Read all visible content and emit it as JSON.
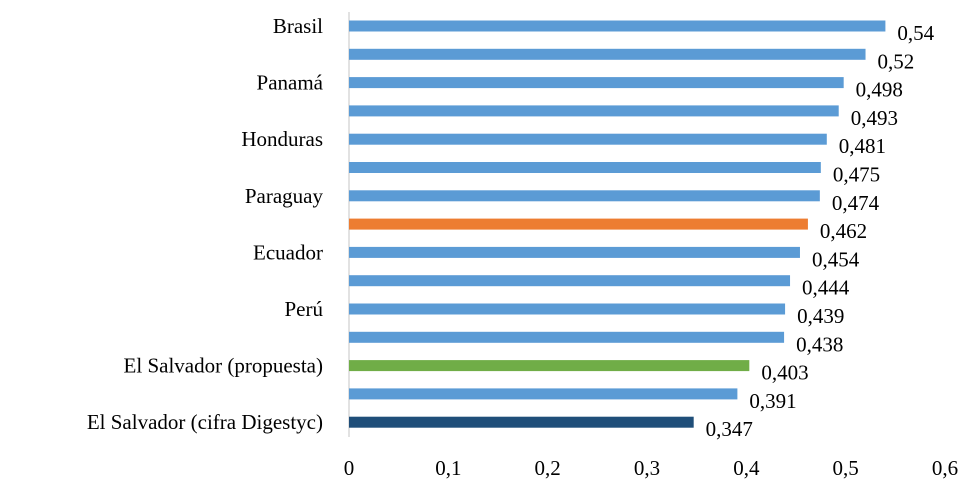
{
  "chart_data": {
    "type": "bar",
    "orientation": "horizontal",
    "title": "",
    "xlabel": "",
    "ylabel": "",
    "categories": [
      "Brasil",
      "",
      "Panamá",
      "",
      "Honduras",
      "",
      "Paraguay",
      "",
      "Ecuador",
      "",
      "Perú",
      "",
      "El Salvador (propuesta)",
      "",
      "El Salvador (cifra Digestyc)"
    ],
    "values": [
      0.54,
      0.52,
      0.498,
      0.493,
      0.481,
      0.475,
      0.474,
      0.462,
      0.454,
      0.444,
      0.439,
      0.438,
      0.403,
      0.391,
      0.347
    ],
    "value_labels": [
      "0,54",
      "0,52",
      "0,498",
      "0,493",
      "0,481",
      "0,475",
      "0,474",
      "0,462",
      "0,454",
      "0,444",
      "0,439",
      "0,438",
      "0,403",
      "0,391",
      "0,347"
    ],
    "bar_colors": [
      "#5B9BD5",
      "#5B9BD5",
      "#5B9BD5",
      "#5B9BD5",
      "#5B9BD5",
      "#5B9BD5",
      "#5B9BD5",
      "#ED7D31",
      "#5B9BD5",
      "#5B9BD5",
      "#5B9BD5",
      "#5B9BD5",
      "#70AD47",
      "#5B9BD5",
      "#1F4E79"
    ],
    "xlim": [
      0,
      0.6
    ],
    "x_ticks": [
      0,
      0.1,
      0.2,
      0.3,
      0.4,
      0.5,
      0.6
    ],
    "x_tick_labels": [
      "0",
      "0,1",
      "0,2",
      "0,3",
      "0,4",
      "0,5",
      "0,6"
    ],
    "grid": false,
    "legend": "none"
  }
}
